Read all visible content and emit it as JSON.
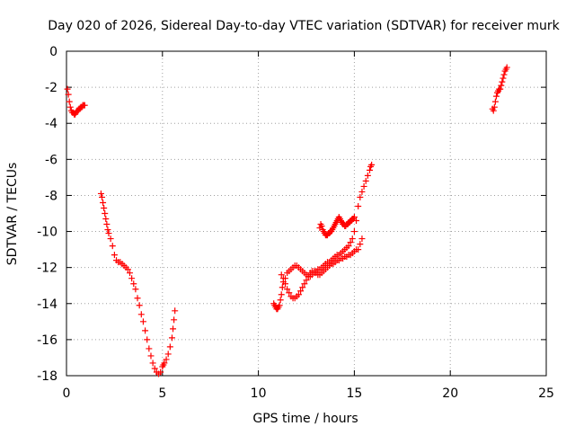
{
  "chart_data": {
    "type": "scatter",
    "title": "Day 020 of 2026, Sidereal Day-to-day VTEC variation (SDTVAR) for receiver murk",
    "xlabel": "GPS time / hours",
    "ylabel": "SDTVAR / TECUs",
    "xlim": [
      0,
      25
    ],
    "ylim": [
      -18,
      0
    ],
    "xticks": [
      0,
      5,
      10,
      15,
      20,
      25
    ],
    "xtick_labels": [
      "0",
      "5",
      "10",
      "15",
      "20",
      "25"
    ],
    "yticks": [
      0,
      -2,
      -4,
      -6,
      -8,
      -10,
      -12,
      -14,
      -16,
      -18
    ],
    "ytick_labels": [
      "0",
      "-2",
      "-4",
      "-6",
      "-8",
      "-10",
      "-12",
      "-14",
      "-16",
      "-18"
    ],
    "grid": true,
    "grid_style": "dotted",
    "marker": "+",
    "marker_color": "#ff0000",
    "series": [
      {
        "x": [
          0.05,
          0.1,
          0.15,
          0.2,
          0.25,
          0.3,
          0.35,
          0.4,
          0.45,
          0.5,
          0.55,
          0.6,
          0.65,
          0.7,
          0.75,
          0.8,
          0.85,
          0.9,
          0.95,
          1.8,
          1.85,
          1.9,
          1.95,
          2.0,
          2.05,
          2.1,
          2.15,
          2.2,
          2.3,
          2.4,
          2.5,
          2.6,
          2.7,
          2.8,
          2.9,
          3.0,
          3.1,
          3.2,
          3.3,
          3.4,
          3.5,
          3.6,
          3.7,
          3.8,
          3.9,
          4.0,
          4.1,
          4.2,
          4.3,
          4.4,
          4.5,
          4.6,
          4.7,
          4.8,
          4.9,
          5.0,
          5.05,
          5.1,
          5.2,
          5.3,
          5.4,
          5.5,
          5.55,
          5.6,
          5.65,
          10.8,
          10.85,
          10.9,
          10.95,
          11.0,
          11.05,
          11.1,
          11.15,
          11.2,
          11.25,
          11.3,
          11.4,
          11.5,
          11.6,
          11.7,
          11.8,
          11.9,
          12.0,
          12.1,
          12.2,
          12.3,
          12.4,
          12.5,
          12.6,
          12.7,
          12.8,
          12.9,
          13.0,
          13.1,
          13.2,
          13.3,
          13.4,
          13.5,
          13.6,
          13.7,
          13.8,
          13.9,
          14.0,
          14.1,
          14.2,
          14.3,
          14.4,
          14.5,
          14.6,
          14.7,
          14.8,
          14.9,
          15.0,
          15.1,
          15.2,
          15.3,
          15.4,
          15.5,
          15.6,
          15.7,
          15.8,
          15.85,
          15.9,
          11.2,
          11.3,
          11.4,
          11.5,
          11.6,
          11.7,
          11.8,
          11.9,
          12.0,
          12.1,
          12.2,
          12.3,
          12.4,
          12.5,
          12.6,
          12.7,
          12.8,
          12.9,
          13.0,
          13.1,
          13.2,
          13.3,
          13.4,
          13.5,
          13.6,
          13.7,
          13.8,
          13.9,
          14.0,
          14.1,
          14.2,
          14.3,
          14.4,
          14.5,
          14.6,
          14.7,
          14.8,
          14.9,
          15.0,
          15.1,
          15.2,
          15.3,
          15.4,
          13.2,
          13.25,
          13.3,
          13.35,
          13.4,
          13.45,
          13.5,
          13.55,
          13.6,
          13.65,
          13.7,
          13.75,
          13.8,
          13.85,
          13.9,
          13.95,
          14.0,
          14.05,
          14.1,
          14.15,
          14.2,
          14.25,
          14.3,
          14.35,
          14.4,
          14.45,
          14.5,
          14.55,
          14.6,
          14.65,
          14.7,
          14.75,
          14.8,
          14.85,
          14.9,
          14.95,
          15.0,
          22.2,
          22.25,
          22.3,
          22.35,
          22.4,
          22.45,
          22.5,
          22.55,
          22.6,
          22.65,
          22.7,
          22.75,
          22.8,
          22.85,
          22.9,
          22.95
        ],
        "y": [
          -2.1,
          -2.4,
          -2.8,
          -3.1,
          -3.3,
          -3.4,
          -3.4,
          -3.5,
          -3.5,
          -3.4,
          -3.3,
          -3.3,
          -3.2,
          -3.2,
          -3.1,
          -3.1,
          -3.0,
          -3.0,
          -3.0,
          -7.9,
          -8.1,
          -8.4,
          -8.7,
          -9.0,
          -9.3,
          -9.6,
          -9.9,
          -10.1,
          -10.4,
          -10.8,
          -11.3,
          -11.6,
          -11.7,
          -11.7,
          -11.8,
          -11.9,
          -12.0,
          -12.1,
          -12.3,
          -12.6,
          -12.9,
          -13.2,
          -13.7,
          -14.1,
          -14.6,
          -15.0,
          -15.5,
          -16.0,
          -16.5,
          -16.9,
          -17.3,
          -17.6,
          -17.8,
          -17.9,
          -17.8,
          -17.5,
          -17.4,
          -17.3,
          -17.1,
          -16.8,
          -16.4,
          -15.9,
          -15.4,
          -14.9,
          -14.4,
          -14.0,
          -14.1,
          -14.2,
          -14.3,
          -14.3,
          -14.2,
          -14.1,
          -13.8,
          -13.5,
          -13.1,
          -12.8,
          -12.6,
          -12.3,
          -12.2,
          -12.1,
          -12.0,
          -11.9,
          -11.9,
          -12.0,
          -12.1,
          -12.2,
          -12.3,
          -12.4,
          -12.5,
          -12.5,
          -12.4,
          -12.3,
          -12.2,
          -12.1,
          -12.1,
          -12.0,
          -11.9,
          -11.8,
          -11.7,
          -11.7,
          -11.6,
          -11.5,
          -11.4,
          -11.3,
          -11.3,
          -11.2,
          -11.1,
          -11.0,
          -10.9,
          -10.8,
          -10.6,
          -10.4,
          -10.0,
          -9.4,
          -8.6,
          -8.1,
          -7.8,
          -7.5,
          -7.2,
          -6.9,
          -6.6,
          -6.4,
          -6.3,
          -12.4,
          -12.6,
          -12.9,
          -13.2,
          -13.4,
          -13.6,
          -13.7,
          -13.7,
          -13.6,
          -13.5,
          -13.3,
          -13.1,
          -12.9,
          -12.7,
          -12.5,
          -12.3,
          -12.2,
          -12.2,
          -12.3,
          -12.4,
          -12.4,
          -12.3,
          -12.2,
          -12.1,
          -12.0,
          -11.9,
          -11.8,
          -11.8,
          -11.7,
          -11.6,
          -11.6,
          -11.5,
          -11.5,
          -11.4,
          -11.4,
          -11.3,
          -11.3,
          -11.2,
          -11.1,
          -11.0,
          -11.0,
          -10.7,
          -10.4,
          -9.8,
          -9.6,
          -9.7,
          -9.9,
          -10.0,
          -10.1,
          -10.2,
          -10.2,
          -10.2,
          -10.1,
          -10.1,
          -10.0,
          -10.0,
          -9.9,
          -9.8,
          -9.7,
          -9.6,
          -9.5,
          -9.4,
          -9.3,
          -9.2,
          -9.3,
          -9.4,
          -9.5,
          -9.6,
          -9.6,
          -9.7,
          -9.7,
          -9.6,
          -9.6,
          -9.5,
          -9.5,
          -9.4,
          -9.4,
          -9.3,
          -9.3,
          -9.2,
          -3.2,
          -3.3,
          -3.1,
          -2.8,
          -2.5,
          -2.3,
          -2.2,
          -2.1,
          -2.1,
          -1.9,
          -1.7,
          -1.5,
          -1.3,
          -1.1,
          -1.0,
          -0.9
        ]
      }
    ]
  }
}
